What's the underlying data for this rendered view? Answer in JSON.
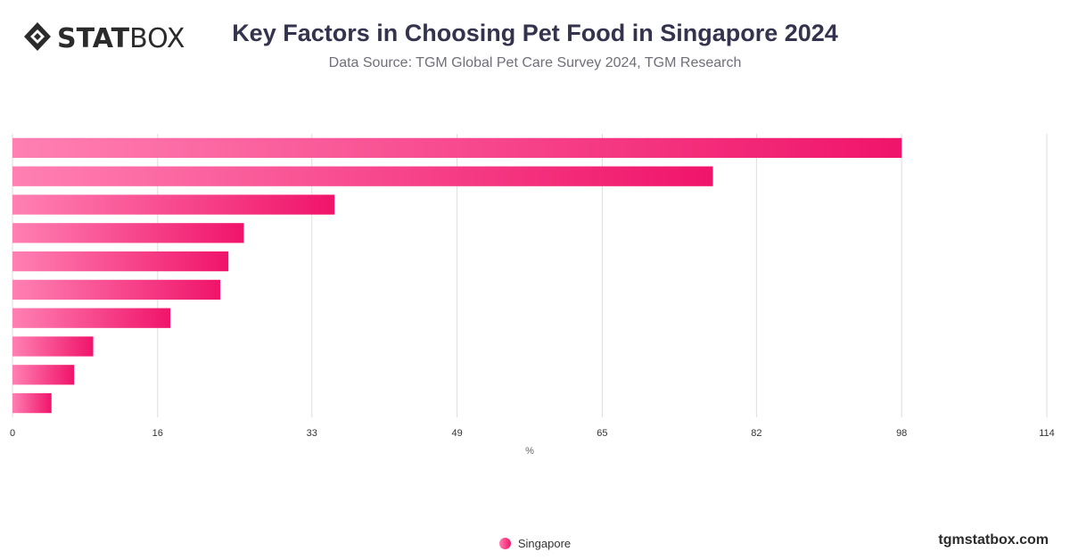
{
  "brand": {
    "logo_strong": "STAT",
    "logo_light": "BOX",
    "credit": "tgmstatbox.com"
  },
  "colors": {
    "bar_start": "#ff80b3",
    "bar_end": "#f0146a",
    "grid": "#dddddd",
    "title": "#33334d"
  },
  "chart_data": {
    "type": "bar",
    "orientation": "horizontal",
    "title": "Key Factors in Choosing Pet Food in Singapore 2024",
    "subtitle": "Data Source: TGM Global Pet Care Survey 2024, TGM Research",
    "xlabel": "%",
    "ylabel": "",
    "xlim": [
      0,
      114
    ],
    "x_ticks": [
      0,
      16,
      33,
      49,
      65,
      82,
      98,
      114
    ],
    "grid": true,
    "legend_position": "bottom-center",
    "series": [
      {
        "name": "Singapore",
        "values": [
          98.0,
          77.2,
          35.5,
          25.5,
          23.8,
          22.9,
          17.4,
          8.9,
          6.8,
          4.3
        ]
      }
    ]
  }
}
